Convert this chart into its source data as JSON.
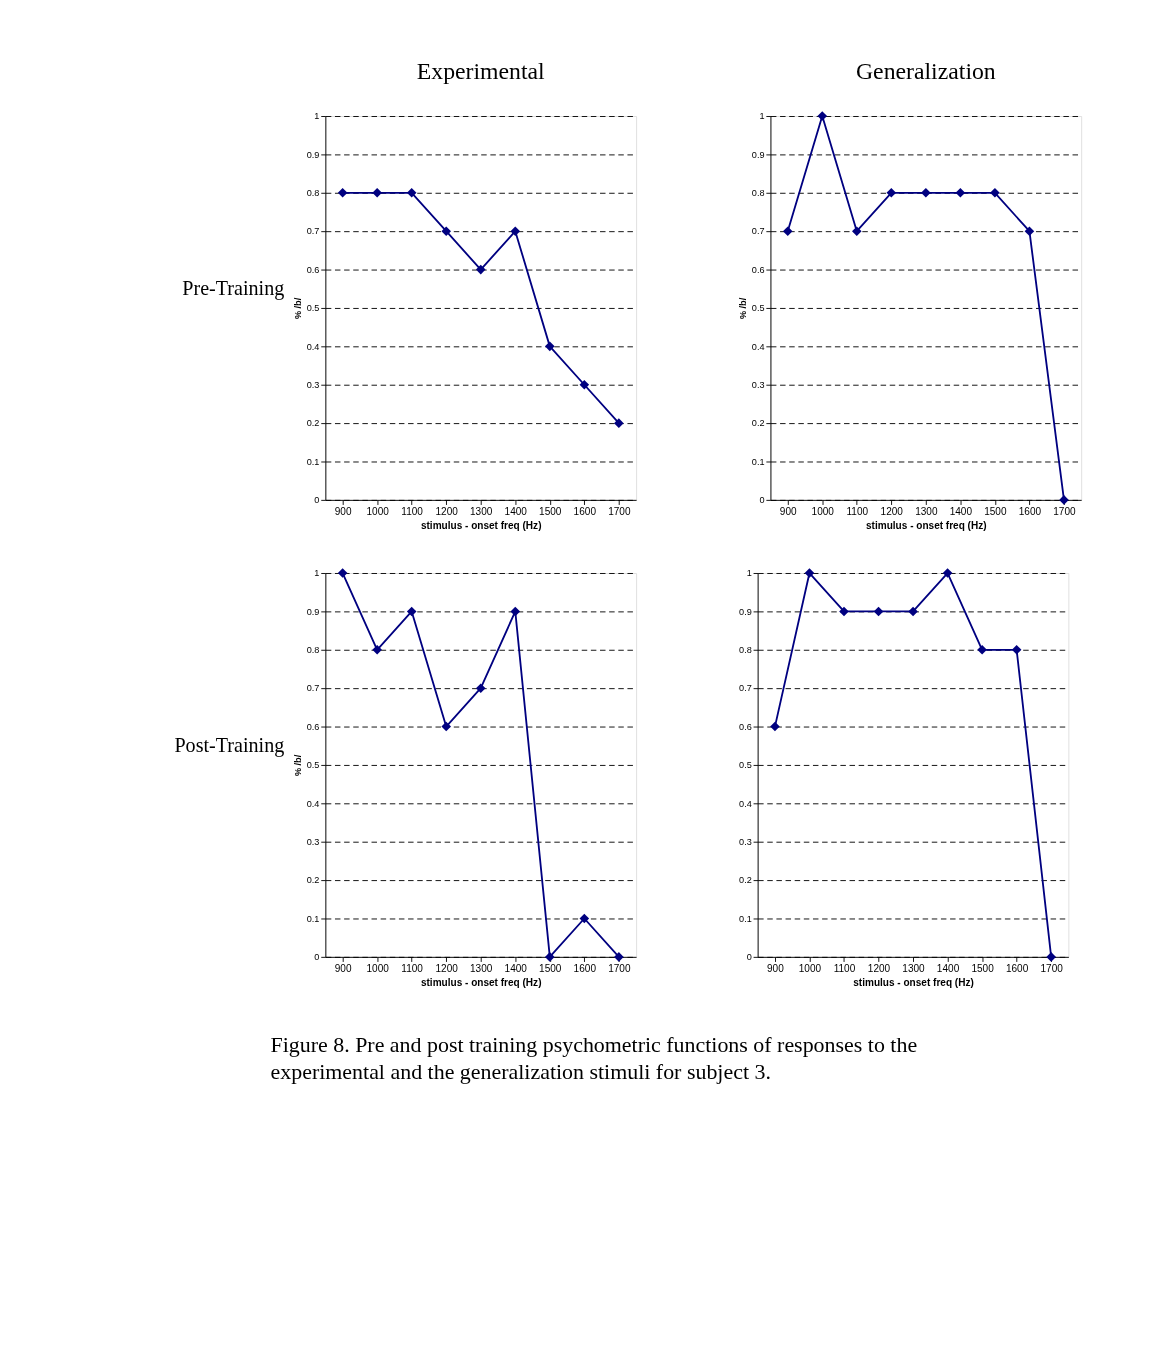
{
  "chart_data": [
    {
      "type": "line",
      "title": "Experimental",
      "annotations": [
        "Pre-Training"
      ],
      "xlabel": "stimulus - onset freq (Hz)",
      "ylabel": "% /b/",
      "categories": [
        "900",
        "1000",
        "1100",
        "1200",
        "1300",
        "1400",
        "1500",
        "1600",
        "1700"
      ],
      "series": [
        {
          "color": "#000080",
          "values": [
            0.8,
            0.8,
            0.8,
            0.7,
            0.6,
            0.7,
            0.4,
            0.3,
            0.2
          ]
        }
      ],
      "ylim": [
        0,
        1
      ],
      "yticks": [
        0,
        0.1,
        0.2,
        0.3,
        0.4,
        0.5,
        0.6,
        0.7,
        0.8,
        0.9,
        1
      ],
      "grid": "y",
      "marker": "diamond",
      "line_style": "solid"
    },
    {
      "type": "line",
      "title": "Generalization",
      "xlabel": "stimulus - onset freq (Hz)",
      "ylabel": "% /b/",
      "categories": [
        "900",
        "1000",
        "1100",
        "1200",
        "1300",
        "1400",
        "1500",
        "1600",
        "1700"
      ],
      "series": [
        {
          "color": "#000080",
          "values": [
            0.7,
            1,
            0.7,
            0.8,
            0.8,
            0.8,
            0.8,
            0.7,
            0
          ]
        }
      ],
      "ylim": [
        0,
        1
      ],
      "yticks": [
        0,
        0.1,
        0.2,
        0.3,
        0.4,
        0.5,
        0.6,
        0.7,
        0.8,
        0.9,
        1
      ],
      "grid": "y",
      "marker": "diamond",
      "line_style": "solid"
    },
    {
      "type": "line",
      "annotations": [
        "Post-Training"
      ],
      "xlabel": "stimulus - onset freq (Hz)",
      "ylabel": "% /b/",
      "categories": [
        "900",
        "1000",
        "1100",
        "1200",
        "1300",
        "1400",
        "1500",
        "1600",
        "1700"
      ],
      "series": [
        {
          "color": "#000080",
          "values": [
            1,
            0.8,
            0.9,
            0.6,
            0.7,
            0.9,
            0,
            0.1,
            0
          ]
        }
      ],
      "ylim": [
        0,
        1
      ],
      "yticks": [
        0,
        0.1,
        0.2,
        0.3,
        0.4,
        0.5,
        0.6,
        0.7,
        0.8,
        0.9,
        1
      ],
      "grid": "y",
      "marker": "diamond",
      "line_style": "solid"
    },
    {
      "type": "line",
      "xlabel": "stimulus - onset freq (Hz)",
      "categories": [
        "900",
        "1000",
        "1100",
        "1200",
        "1300",
        "1400",
        "1500",
        "1600",
        "1700"
      ],
      "series": [
        {
          "color": "#000080",
          "values": [
            0.6,
            1,
            0.9,
            0.9,
            0.9,
            1,
            0.8,
            0.8,
            0
          ]
        }
      ],
      "ylim": [
        0,
        1
      ],
      "yticks": [
        0,
        0.1,
        0.2,
        0.3,
        0.4,
        0.5,
        0.6,
        0.7,
        0.8,
        0.9,
        1
      ],
      "grid": "y",
      "marker": "diamond",
      "line_style": "solid"
    },
    {
      "type": "other",
      "annotations": [
        "Figure 8.  Pre and post training psychometric functions of responses to the experimental and the generalization stimuli for subject 3."
      ]
    }
  ]
}
